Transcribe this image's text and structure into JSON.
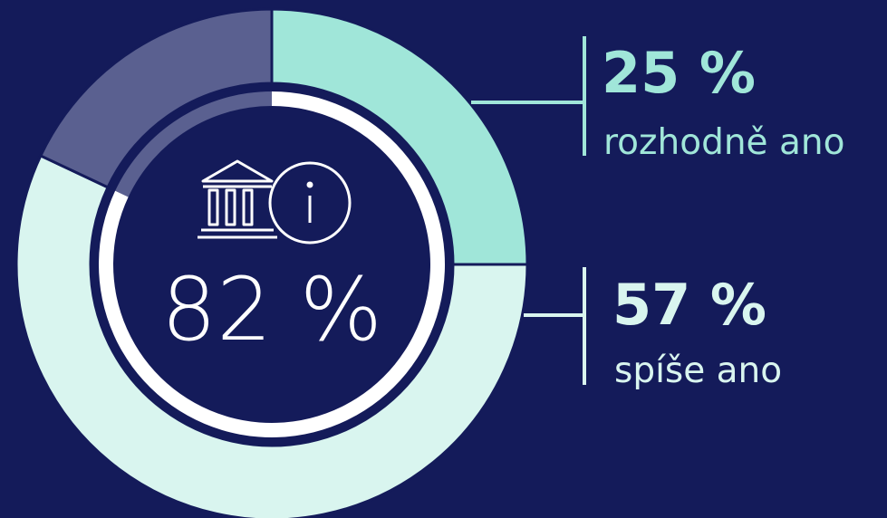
{
  "chart_data": {
    "type": "donut",
    "categories": [
      "rozhodně ano",
      "spíše ano",
      null
    ],
    "values": [
      25,
      57,
      18
    ],
    "value_labels": [
      "25 %",
      "57 %",
      null
    ],
    "colors": [
      "#a0e6d9",
      "#d9f5ef",
      "#5a6090"
    ],
    "inner_ring": {
      "values": [
        82,
        18
      ],
      "value_labels": [
        "82 %",
        null
      ],
      "colors": [
        "#ffffff",
        "#5a6090"
      ]
    }
  }
}
